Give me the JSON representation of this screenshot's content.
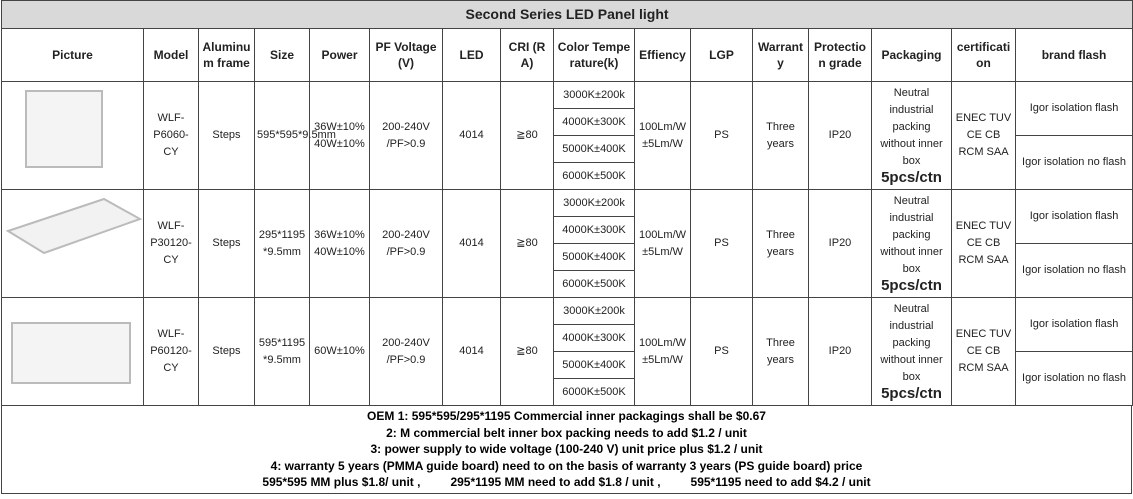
{
  "title": "Second Series LED Panel light",
  "headers": [
    "Picture",
    "Model",
    "Aluminum frame",
    "Size",
    "Power",
    "PF Voltage (V)",
    "LED",
    "CRI (RA)",
    "Color Temperature(k)",
    "Effiency",
    "LGP",
    "Warranty",
    "Protection grade",
    "Packaging",
    "certification",
    "brand flash"
  ],
  "rows": [
    {
      "model": "WLF-P6060-CY",
      "frame": "Steps",
      "size": "595*595*9.5mm",
      "power": "36W±10% 40W±10%",
      "voltage": "200-240V /PF>0.9",
      "led": "4014",
      "cri": "≧80",
      "cct": [
        "3000K±200k",
        "4000K±300K",
        "5000K±400K",
        "6000K±500K"
      ],
      "efficiency": "100Lm/W ±5Lm/W",
      "lgp": "PS",
      "warranty": "Three years",
      "protection": "IP20",
      "packaging": "Neutral industrial packing without inner box",
      "pcs": "5pcs/ctn",
      "certification": "ENEC TUV CE CB RCM SAA",
      "brand": [
        "Igor isolation flash",
        "Igor isolation no flash"
      ]
    },
    {
      "model": "WLF-P30120-CY",
      "frame": "Steps",
      "size": "295*1195 *9.5mm",
      "power": "36W±10% 40W±10%",
      "voltage": "200-240V /PF>0.9",
      "led": "4014",
      "cri": "≧80",
      "cct": [
        "3000K±200k",
        "4000K±300K",
        "5000K±400K",
        "6000K±500K"
      ],
      "efficiency": "100Lm/W ±5Lm/W",
      "lgp": "PS",
      "warranty": "Three years",
      "protection": "IP20",
      "packaging": "Neutral industrial packing without inner box",
      "pcs": "5pcs/ctn",
      "certification": "ENEC TUV CE CB RCM SAA",
      "brand": [
        "Igor isolation flash",
        "Igor isolation no flash"
      ]
    },
    {
      "model": "WLF-P60120-CY",
      "frame": "Steps",
      "size": "595*1195 *9.5mm",
      "power": "60W±10%",
      "voltage": "200-240V /PF>0.9",
      "led": "4014",
      "cri": "≧80",
      "cct": [
        "3000K±200k",
        "4000K±300K",
        "5000K±400K",
        "6000K±500K"
      ],
      "efficiency": "100Lm/W ±5Lm/W",
      "lgp": "PS",
      "warranty": "Three years",
      "protection": "IP20",
      "packaging": "Neutral industrial packing without inner box",
      "pcs": "5pcs/ctn",
      "certification": "ENEC TUV CE CB RCM SAA",
      "brand": [
        "Igor isolation flash",
        "Igor isolation no flash"
      ]
    }
  ],
  "notes": [
    [
      "OEM    1:  595*595/295*1195 Commercial inner packagings shall be $0.67"
    ],
    [
      "2:  M commercial belt inner box packing needs to add  $1.2 / unit"
    ],
    [
      "3:  power supply to wide voltage (100-240 V) unit price plus $1.2 / unit"
    ],
    [
      "4: warranty 5 years (PMMA guide board) need to on the basis of warranty 3 years (PS guide board) price"
    ],
    [
      "595*595 MM plus $1.8/ unit ,",
      "295*1195 MM need to add $1.8 / unit ,",
      "595*1195 need to add $4.2 / unit"
    ]
  ]
}
